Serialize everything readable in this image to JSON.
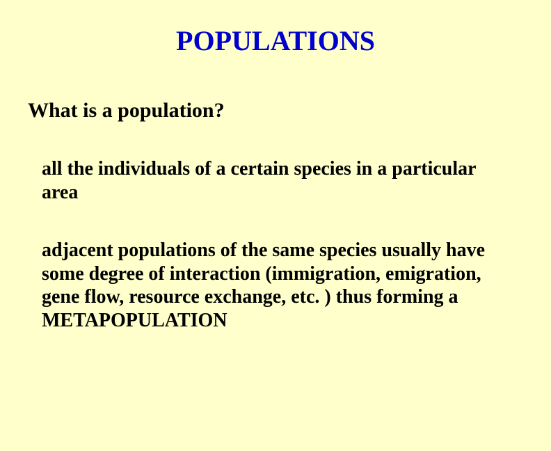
{
  "slide": {
    "background_color": "#ffffcc",
    "title": {
      "text": "POPULATIONS",
      "color": "#0000cc",
      "font_size": 40,
      "font_weight": "bold",
      "align": "center"
    },
    "subtitle": {
      "text": "What is a population?",
      "color": "#000000",
      "font_size": 30,
      "font_weight": "bold"
    },
    "paragraphs": [
      {
        "text": "all the individuals of a certain species in a particular area",
        "color": "#000000",
        "font_size": 28,
        "font_weight": "bold"
      },
      {
        "text": "adjacent populations of the same species usually have some degree of interaction (immigration, emigration, gene flow, resource exchange, etc. ) thus forming a METAPOPULATION",
        "color": "#000000",
        "font_size": 28,
        "font_weight": "bold"
      }
    ]
  }
}
